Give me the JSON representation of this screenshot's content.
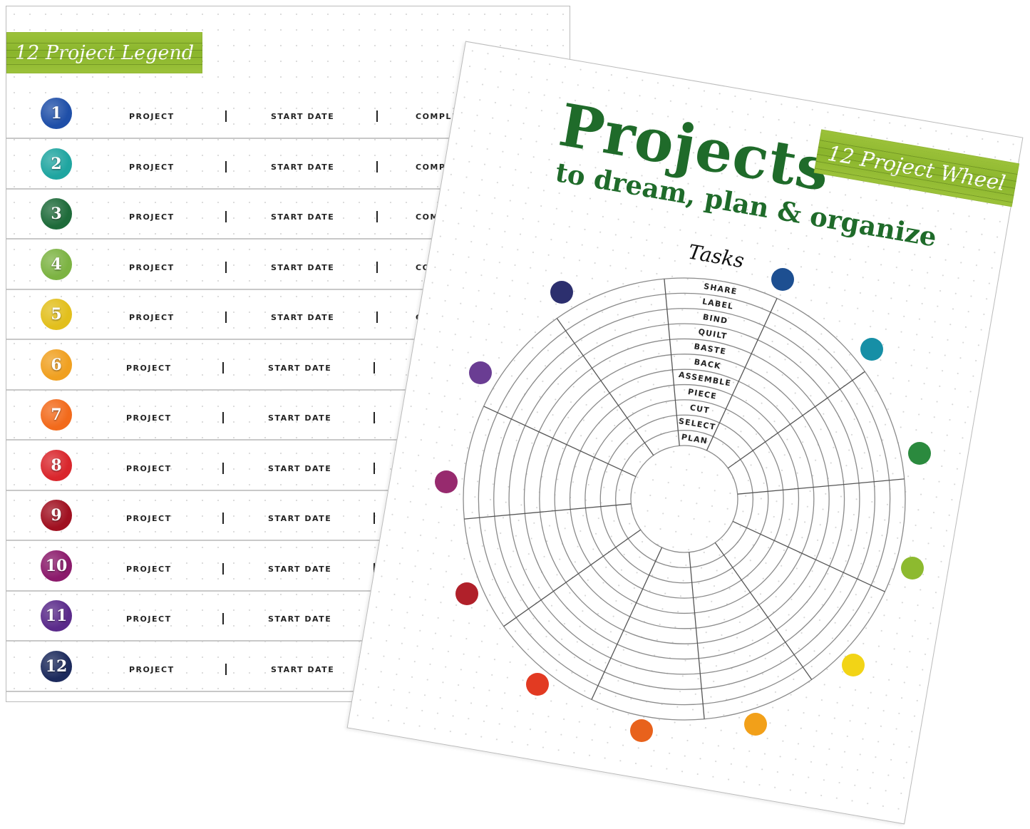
{
  "legend_page": {
    "banner": "12 Project Legend",
    "columns": {
      "project": "PROJECT",
      "start": "START DATE",
      "complete": "COMPLETE"
    },
    "projects": [
      {
        "number": "1",
        "color": "#1f4fa8"
      },
      {
        "number": "2",
        "color": "#1fa5a0"
      },
      {
        "number": "3",
        "color": "#1e6b3a"
      },
      {
        "number": "4",
        "color": "#7cb342"
      },
      {
        "number": "5",
        "color": "#e2bf1c"
      },
      {
        "number": "6",
        "color": "#f0a020"
      },
      {
        "number": "7",
        "color": "#f26a1b"
      },
      {
        "number": "8",
        "color": "#d9262c"
      },
      {
        "number": "9",
        "color": "#a01020"
      },
      {
        "number": "10",
        "color": "#8b1a6b"
      },
      {
        "number": "11",
        "color": "#5a2a8a"
      },
      {
        "number": "12",
        "color": "#1c2a5c"
      }
    ]
  },
  "wheel_page": {
    "title": "Projects",
    "subtitle": "to dream, plan & organize",
    "banner": "12 Project Wheel",
    "tasks_heading": "Tasks",
    "tasks": [
      "PLAN",
      "SELECT",
      "CUT",
      "PIECE",
      "ASSEMBLE",
      "BACK",
      "BASTE",
      "QUILT",
      "BIND",
      "LABEL",
      "SHARE"
    ],
    "dot_colors": [
      "#1d4f91",
      "#168fa6",
      "#2b8a3e",
      "#8dba2f",
      "#f2d416",
      "#f2a019",
      "#e8621c",
      "#e23a22",
      "#b0202a",
      "#972a6e",
      "#6a3d93",
      "#2c2f6e"
    ],
    "title_color": "#1f6b2a"
  }
}
